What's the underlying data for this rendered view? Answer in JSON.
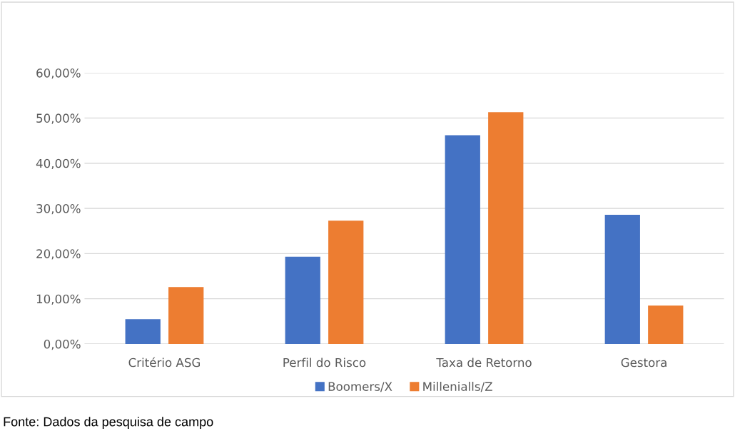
{
  "chart_data": {
    "type": "bar",
    "categories": [
      "Critério ASG",
      "Perfil do Risco",
      "Taxa de Retorno",
      "Gestora"
    ],
    "series": [
      {
        "name": "Boomers/X",
        "color": "#4472c4",
        "values": [
          5.5,
          19.3,
          46.2,
          28.6
        ]
      },
      {
        "name": "Millenialls/Z",
        "color": "#ed7d31",
        "values": [
          12.6,
          27.3,
          51.3,
          8.5
        ]
      }
    ],
    "ylim": [
      0,
      60
    ],
    "yticks": [
      {
        "value": 0,
        "label": "0,00%"
      },
      {
        "value": 10,
        "label": "10,00%"
      },
      {
        "value": 20,
        "label": "20,00%"
      },
      {
        "value": 30,
        "label": "30,00%"
      },
      {
        "value": 40,
        "label": "40,00%"
      },
      {
        "value": 50,
        "label": "50,00%"
      },
      {
        "value": 60,
        "label": "60,00%"
      }
    ],
    "grid": "y",
    "legend": "bottom",
    "annotations": [
      "Fonte: Dados da pesquisa de campo"
    ]
  }
}
